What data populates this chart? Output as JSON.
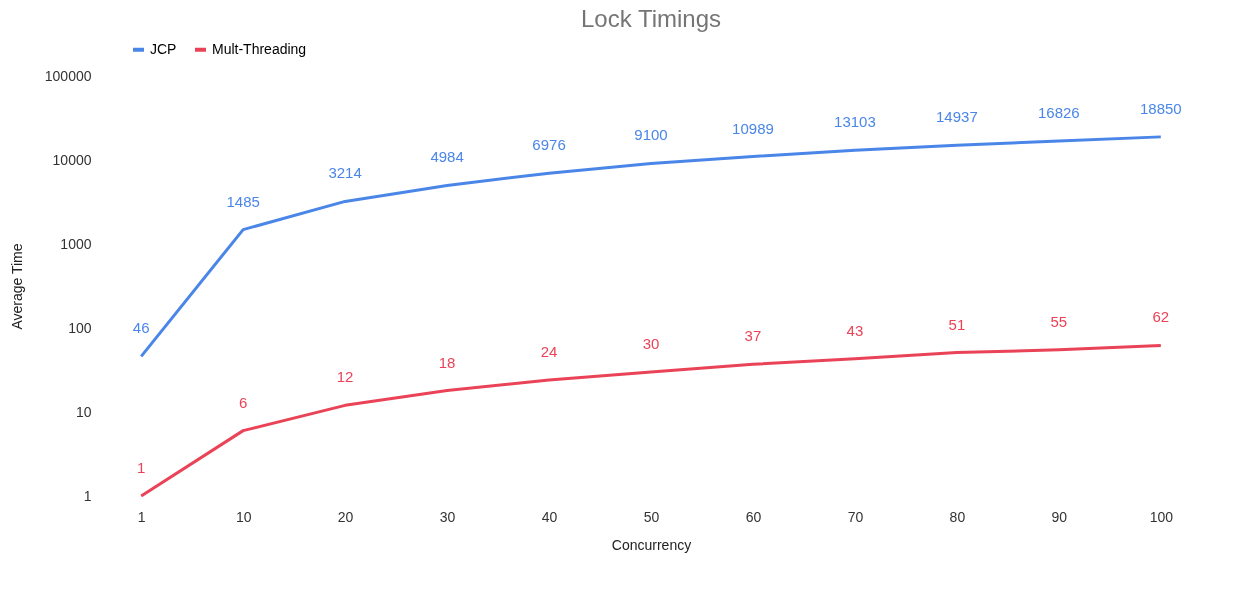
{
  "chart_data": {
    "type": "line",
    "title": "Lock Timings",
    "xlabel": "Concurrency",
    "ylabel": "Average Time",
    "categories": [
      "1",
      "10",
      "20",
      "30",
      "40",
      "50",
      "60",
      "70",
      "80",
      "90",
      "100"
    ],
    "series": [
      {
        "name": "JCP",
        "color": "#4a86e8",
        "values": [
          46,
          1485,
          3214,
          4984,
          6976,
          9100,
          10989,
          13103,
          14937,
          16826,
          18850
        ]
      },
      {
        "name": "Mult-Threading",
        "color": "#ea4357",
        "values": [
          1,
          6,
          12,
          18,
          24,
          30,
          37,
          43,
          51,
          55,
          62
        ]
      }
    ],
    "log": true,
    "ylim": [
      1,
      100000
    ],
    "yticks": [
      1,
      10,
      100,
      1000,
      10000,
      100000
    ],
    "grid": false,
    "legend": "top",
    "data_labels": true,
    "marker": "none",
    "line_style": "solid"
  }
}
